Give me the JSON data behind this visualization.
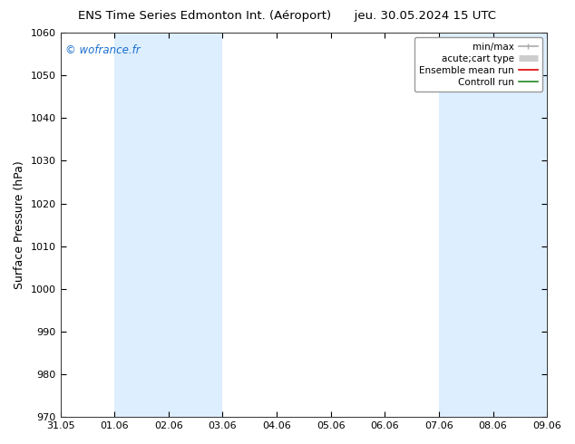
{
  "title_left": "ENS Time Series Edmonton Int. (Aéroport)",
  "title_right": "jeu. 30.05.2024 15 UTC",
  "ylabel": "Surface Pressure (hPa)",
  "ylim": [
    970,
    1060
  ],
  "yticks": [
    970,
    980,
    990,
    1000,
    1010,
    1020,
    1030,
    1040,
    1050,
    1060
  ],
  "xtick_labels": [
    "31.05",
    "01.06",
    "02.06",
    "03.06",
    "04.06",
    "05.06",
    "06.06",
    "07.06",
    "08.06",
    "09.06"
  ],
  "watermark": "© wofrance.fr",
  "watermark_color": "#1a6fcc",
  "bg_color": "#ffffff",
  "plot_bg_color": "#ffffff",
  "shaded_bands": [
    {
      "xstart": 1,
      "xend": 3,
      "color": "#ddeeff"
    },
    {
      "xstart": 7,
      "xend": 10,
      "color": "#ddeeff"
    }
  ],
  "legend_entries": [
    {
      "label": "min/max",
      "color": "#aaaaaa",
      "lw": 1.2
    },
    {
      "label": "acute;cart type",
      "color": "#cccccc",
      "lw": 5
    },
    {
      "label": "Ensemble mean run",
      "color": "#dd0000",
      "lw": 1.2
    },
    {
      "label": "Controll run",
      "color": "#228822",
      "lw": 1.2
    }
  ],
  "title_fontsize": 9.5,
  "axis_label_fontsize": 9,
  "tick_fontsize": 8,
  "legend_fontsize": 7.5,
  "figsize": [
    6.34,
    4.9
  ],
  "dpi": 100
}
